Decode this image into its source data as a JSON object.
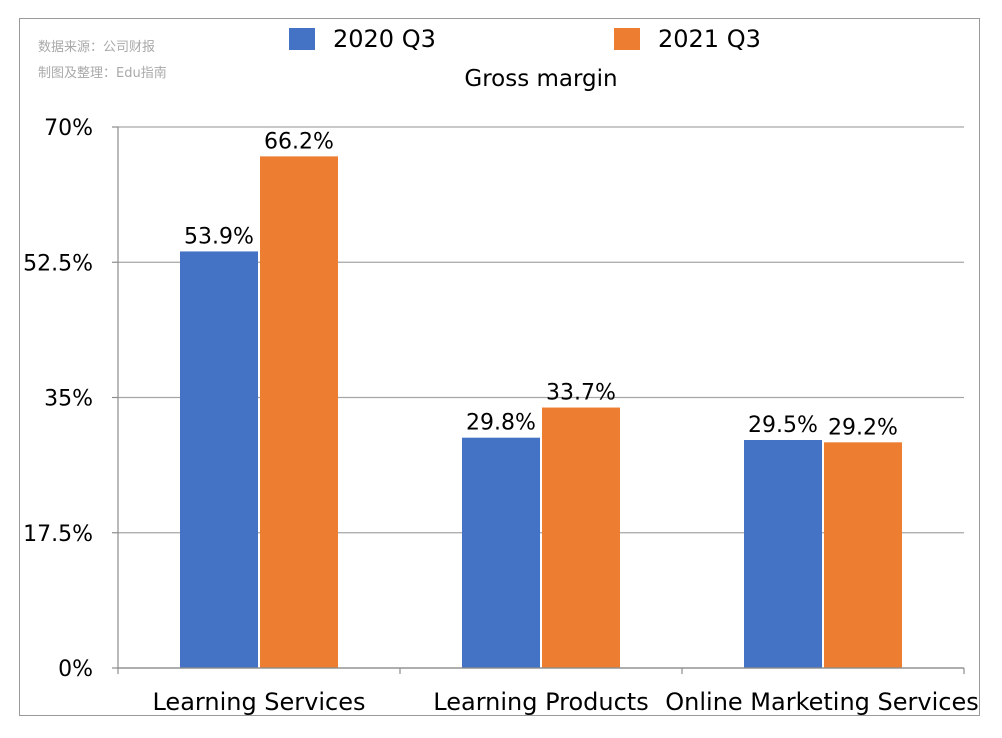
{
  "source": {
    "line1": "数据来源：公司财报",
    "line2": "制图及整理：Edu指南"
  },
  "chart_data": {
    "type": "bar",
    "title": "Gross margin",
    "categories": [
      "Learning Services",
      "Learning Products",
      "Online Marketing Services"
    ],
    "series": [
      {
        "name": "2020 Q3",
        "color": "#4472c4",
        "values": [
          53.9,
          29.8,
          29.5
        ],
        "labels": [
          "53.9%",
          "29.8%",
          "29.5%"
        ]
      },
      {
        "name": "2021 Q3",
        "color": "#ed7d31",
        "values": [
          66.2,
          33.7,
          29.2
        ],
        "labels": [
          "66.2%",
          "33.7%",
          "29.2%"
        ]
      }
    ],
    "ylim": [
      0,
      70
    ],
    "yticks": [
      0,
      17.5,
      35,
      52.5,
      70
    ],
    "ytick_labels": [
      "0%",
      "17.5%",
      "35%",
      "52.5%",
      "70%"
    ],
    "grid": true,
    "legend_position": "top"
  }
}
